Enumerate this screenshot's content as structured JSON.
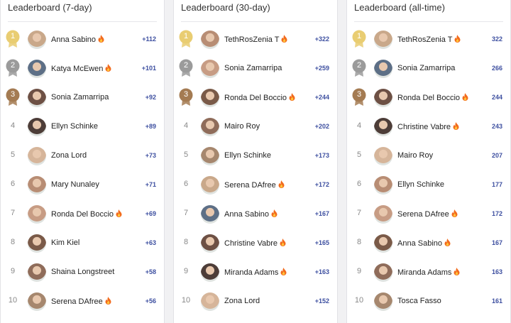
{
  "panels": [
    {
      "title": "Leaderboard (7-day)",
      "rows": [
        {
          "rank": "1",
          "name": "Anna Sabino",
          "points": "+112",
          "streak": true
        },
        {
          "rank": "2",
          "name": "Katya McEwen",
          "points": "+101",
          "streak": true
        },
        {
          "rank": "3",
          "name": "Sonia Zamarripa",
          "points": "+92",
          "streak": false
        },
        {
          "rank": "4",
          "name": "Ellyn Schinke",
          "points": "+89",
          "streak": false
        },
        {
          "rank": "5",
          "name": "Zona Lord",
          "points": "+73",
          "streak": false
        },
        {
          "rank": "6",
          "name": "Mary Nunaley",
          "points": "+71",
          "streak": false
        },
        {
          "rank": "7",
          "name": "Ronda Del Boccio",
          "points": "+69",
          "streak": true
        },
        {
          "rank": "8",
          "name": "Kim Kiel",
          "points": "+63",
          "streak": false
        },
        {
          "rank": "9",
          "name": "Shaina Longstreet",
          "points": "+58",
          "streak": false
        },
        {
          "rank": "10",
          "name": "Serena DAfree",
          "points": "+56",
          "streak": true
        }
      ]
    },
    {
      "title": "Leaderboard (30-day)",
      "rows": [
        {
          "rank": "1",
          "name": "TethRosZenia T",
          "points": "+322",
          "streak": true
        },
        {
          "rank": "2",
          "name": "Sonia Zamarripa",
          "points": "+259",
          "streak": false
        },
        {
          "rank": "3",
          "name": "Ronda Del Boccio",
          "points": "+244",
          "streak": true
        },
        {
          "rank": "4",
          "name": "Mairo Roy",
          "points": "+202",
          "streak": false
        },
        {
          "rank": "5",
          "name": "Ellyn Schinke",
          "points": "+173",
          "streak": false
        },
        {
          "rank": "6",
          "name": "Serena DAfree",
          "points": "+172",
          "streak": true
        },
        {
          "rank": "7",
          "name": "Anna Sabino",
          "points": "+167",
          "streak": true
        },
        {
          "rank": "8",
          "name": "Christine Vabre",
          "points": "+165",
          "streak": true
        },
        {
          "rank": "9",
          "name": "Miranda Adams",
          "points": "+163",
          "streak": true
        },
        {
          "rank": "10",
          "name": "Zona Lord",
          "points": "+152",
          "streak": false
        }
      ]
    },
    {
      "title": "Leaderboard (all-time)",
      "rows": [
        {
          "rank": "1",
          "name": "TethRosZenia T",
          "points": "322",
          "streak": true
        },
        {
          "rank": "2",
          "name": "Sonia Zamarripa",
          "points": "266",
          "streak": false
        },
        {
          "rank": "3",
          "name": "Ronda Del Boccio",
          "points": "244",
          "streak": true
        },
        {
          "rank": "4",
          "name": "Christine Vabre",
          "points": "243",
          "streak": true
        },
        {
          "rank": "5",
          "name": "Mairo Roy",
          "points": "207",
          "streak": false
        },
        {
          "rank": "6",
          "name": "Ellyn Schinke",
          "points": "177",
          "streak": false
        },
        {
          "rank": "7",
          "name": "Serena DAfree",
          "points": "172",
          "streak": true
        },
        {
          "rank": "8",
          "name": "Anna Sabino",
          "points": "167",
          "streak": true
        },
        {
          "rank": "9",
          "name": "Miranda Adams",
          "points": "163",
          "streak": true
        },
        {
          "rank": "10",
          "name": "Tosca Fasso",
          "points": "161",
          "streak": false
        }
      ]
    }
  ]
}
